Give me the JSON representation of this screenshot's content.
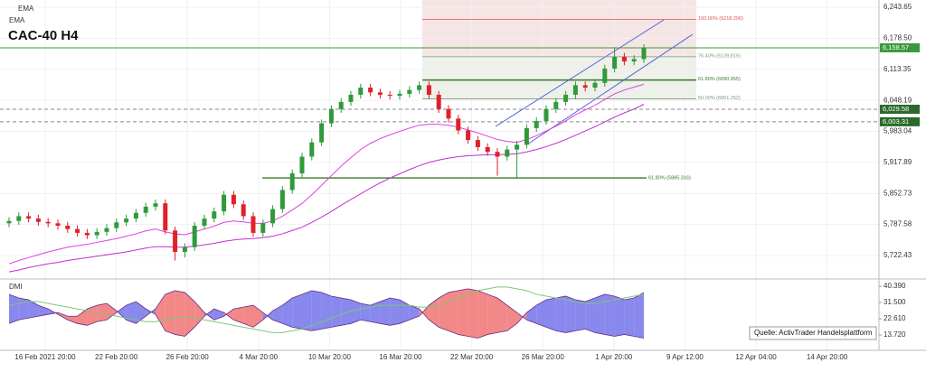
{
  "header": {
    "indicator_labels": [
      "EMA",
      "EMA"
    ],
    "title": "CAC-40 H4"
  },
  "source_note": "Quelle: ActivTrader Handelsplattform",
  "chart_data": [
    {
      "type": "candlestick",
      "x_labels": [
        "16 Feb 2021 20:00",
        "22 Feb 20:00",
        "26 Feb 20:00",
        "4 Mar 20:00",
        "10 Mar 20:00",
        "16 Mar 20:00",
        "22 Mar 20:00",
        "26 Mar 20:00",
        "1 Apr 20:00",
        "9 Apr 12:00",
        "12 Apr 04:00",
        "14 Apr 20:00"
      ],
      "ylim": [
        5675,
        6259
      ],
      "yticks": [
        {
          "value": 6243.65,
          "label": "6,243.65"
        },
        {
          "value": 6178.5,
          "label": "6,178.50"
        },
        {
          "value": 6113.35,
          "label": "6,113.35"
        },
        {
          "value": 6048.19,
          "label": "6,048.19"
        },
        {
          "value": 5983.04,
          "label": "5,983.04"
        },
        {
          "value": 5917.89,
          "label": "5,917.89"
        },
        {
          "value": 5852.73,
          "label": "5,852.73"
        },
        {
          "value": 5787.58,
          "label": "5,787.58"
        },
        {
          "value": 5722.43,
          "label": "5,722.43"
        }
      ],
      "grid": true,
      "up_color": "#2e9a3a",
      "down_color": "#e0202a",
      "open": [
        5790,
        5795,
        5805,
        5800,
        5793,
        5790,
        5785,
        5778,
        5770,
        5765,
        5772,
        5780,
        5792,
        5800,
        5812,
        5825,
        5832,
        5775,
        5730,
        5740,
        5785,
        5800,
        5815,
        5850,
        5830,
        5805,
        5770,
        5790,
        5820,
        5860,
        5895,
        5930,
        5960,
        6000,
        6030,
        6045,
        6060,
        6075,
        6065,
        6060,
        6058,
        6062,
        6070,
        6080,
        6060,
        6030,
        6010,
        5985,
        5965,
        5950,
        5940,
        5930,
        5945,
        5955,
        5990,
        6005,
        6030,
        6045,
        6060,
        6080,
        6075,
        6085,
        6115,
        6140,
        6130,
        6135
      ],
      "high": [
        5803,
        5813,
        5813,
        5808,
        5801,
        5798,
        5793,
        5786,
        5778,
        5780,
        5788,
        5800,
        5808,
        5820,
        5833,
        5840,
        5840,
        5783,
        5748,
        5793,
        5808,
        5823,
        5858,
        5858,
        5838,
        5813,
        5798,
        5828,
        5868,
        5903,
        5938,
        5968,
        6008,
        6038,
        6053,
        6068,
        6083,
        6083,
        6073,
        6068,
        6070,
        6078,
        6088,
        6088,
        6068,
        6038,
        6018,
        5993,
        5973,
        5958,
        5948,
        5953,
        5963,
        5998,
        6013,
        6038,
        6053,
        6068,
        6088,
        6088,
        6093,
        6123,
        6160,
        6148,
        6143,
        6166
      ],
      "low": [
        5782,
        5787,
        5792,
        5785,
        5782,
        5777,
        5770,
        5762,
        5757,
        5757,
        5764,
        5772,
        5784,
        5792,
        5804,
        5817,
        5767,
        5712,
        5718,
        5732,
        5777,
        5792,
        5807,
        5822,
        5797,
        5762,
        5762,
        5782,
        5812,
        5852,
        5887,
        5922,
        5952,
        5992,
        6022,
        6037,
        6052,
        6057,
        6052,
        6050,
        6050,
        6054,
        6062,
        6052,
        6022,
        6002,
        5977,
        5957,
        5942,
        5932,
        5890,
        5922,
        5886,
        5947,
        5982,
        5997,
        6022,
        6037,
        6052,
        6067,
        6067,
        6077,
        6107,
        6122,
        6122,
        6127
      ],
      "close": [
        5795,
        5805,
        5800,
        5793,
        5790,
        5785,
        5778,
        5770,
        5765,
        5772,
        5780,
        5792,
        5800,
        5812,
        5825,
        5832,
        5775,
        5730,
        5740,
        5785,
        5800,
        5815,
        5850,
        5830,
        5805,
        5770,
        5790,
        5820,
        5860,
        5895,
        5930,
        5960,
        6000,
        6030,
        6045,
        6060,
        6075,
        6065,
        6060,
        6058,
        6062,
        6070,
        6080,
        6060,
        6030,
        6010,
        5985,
        5965,
        5950,
        5940,
        5930,
        5945,
        5955,
        5990,
        6005,
        6030,
        6045,
        6060,
        6080,
        6075,
        6085,
        6115,
        6140,
        6130,
        6135,
        6158
      ],
      "lines": [
        {
          "color": "#e040e0",
          "values": [
            5705,
            5712,
            5718,
            5724,
            5730,
            5735,
            5740,
            5743,
            5746,
            5750,
            5754,
            5758,
            5763,
            5768,
            5774,
            5778,
            5772,
            5768,
            5766,
            5772,
            5778,
            5784,
            5792,
            5795,
            5793,
            5790,
            5790,
            5795,
            5805,
            5818,
            5832,
            5850,
            5870,
            5890,
            5910,
            5928,
            5945,
            5958,
            5968,
            5976,
            5983,
            5990,
            5996,
            5998,
            5998,
            5996,
            5992,
            5986,
            5980,
            5973,
            5966,
            5962,
            5960,
            5966,
            5974,
            5984,
            5994,
            6005,
            6018,
            6028,
            6038,
            6050,
            6062,
            6070,
            6076,
            6082
          ]
        },
        {
          "color": "#c030d0",
          "values": [
            5688,
            5692,
            5697,
            5701,
            5705,
            5708,
            5712,
            5715,
            5718,
            5721,
            5724,
            5727,
            5730,
            5734,
            5738,
            5741,
            5741,
            5740,
            5740,
            5742,
            5745,
            5748,
            5752,
            5755,
            5757,
            5758,
            5760,
            5763,
            5768,
            5775,
            5782,
            5792,
            5803,
            5815,
            5828,
            5840,
            5852,
            5864,
            5875,
            5885,
            5894,
            5903,
            5911,
            5918,
            5923,
            5927,
            5930,
            5932,
            5933,
            5934,
            5934,
            5935,
            5936,
            5940,
            5945,
            5951,
            5958,
            5966,
            5975,
            5984,
            5993,
            6003,
            6013,
            6022,
            6030,
            6040
          ]
        }
      ],
      "fib_levels": [
        {
          "value": 6218.206,
          "label": "100.00% (6218.206)",
          "color": "#e05050"
        },
        {
          "value": 6139.819,
          "label": "76.40% (6139.819)",
          "color": "#7a9a7a"
        },
        {
          "value": 6090.955,
          "label": "61.80% (6090.955)",
          "color": "#3a7a2a"
        },
        {
          "value": 6051.252,
          "label": "50.00% (6051.252)",
          "color": "#7a9a7a"
        },
        {
          "value": 5885.316,
          "label": "61.80% (5885.316)",
          "color": "#3a7a2a"
        }
      ],
      "price_lines": [
        {
          "value": 6158.57,
          "label": "6,158.57",
          "color": "#3a9a3a",
          "dashed": false
        },
        {
          "value": 6029.58,
          "label": "6,029.58",
          "color": "#2a6a2a",
          "dashed": true
        },
        {
          "value": 6003.31,
          "label": "6,003.31",
          "color": "#2a6a2a",
          "dashed": true
        }
      ]
    },
    {
      "type": "dmi",
      "title": "DMI",
      "ylim": [
        6.8,
        42.9
      ],
      "yticks": [
        {
          "value": 40.39,
          "label": "40.390"
        },
        {
          "value": 31.5,
          "label": "31.500"
        },
        {
          "value": 22.61,
          "label": "22.610"
        },
        {
          "value": 13.72,
          "label": "13.720"
        }
      ],
      "series": [
        {
          "color": "#6a6ae8",
          "values": [
            36,
            34,
            33,
            30,
            28,
            25,
            22,
            20,
            19,
            21,
            22,
            26,
            30,
            32,
            28,
            25,
            16,
            14,
            13,
            18,
            24,
            28,
            26,
            22,
            20,
            18,
            22,
            27,
            30,
            34,
            36,
            38,
            37,
            35,
            34,
            33,
            31,
            30,
            32,
            34,
            33,
            30,
            28,
            22,
            18,
            16,
            14,
            13,
            12,
            14,
            15,
            16,
            20,
            26,
            30,
            33,
            34,
            35,
            33,
            32,
            34,
            36,
            35,
            33,
            34,
            37
          ]
        },
        {
          "color": "#f06a6a",
          "values": [
            20,
            22,
            23,
            24,
            25,
            26,
            24,
            24,
            28,
            30,
            31,
            27,
            22,
            20,
            24,
            28,
            36,
            38,
            37,
            32,
            26,
            22,
            24,
            28,
            29,
            30,
            26,
            22,
            20,
            18,
            17,
            16,
            17,
            18,
            19,
            20,
            22,
            21,
            20,
            19,
            20,
            22,
            24,
            30,
            34,
            37,
            38,
            39,
            38,
            36,
            34,
            30,
            26,
            22,
            20,
            18,
            16,
            15,
            16,
            17,
            15,
            14,
            13,
            14,
            13,
            12
          ]
        },
        {
          "color": "#7ac87a",
          "values": [
            30,
            31,
            32,
            32,
            31,
            30,
            29,
            28,
            27,
            26,
            25,
            24,
            23,
            22,
            21,
            21,
            22,
            23,
            24,
            23,
            22,
            21,
            20,
            19,
            18,
            17,
            16,
            15,
            15,
            16,
            17,
            19,
            21,
            23,
            25,
            27,
            28,
            29,
            30,
            30,
            30,
            30,
            29,
            29,
            30,
            32,
            34,
            36,
            38,
            39,
            40,
            40,
            39,
            38,
            36,
            35,
            34,
            33,
            32,
            31,
            31,
            32,
            33,
            34,
            35,
            36
          ]
        }
      ]
    }
  ]
}
